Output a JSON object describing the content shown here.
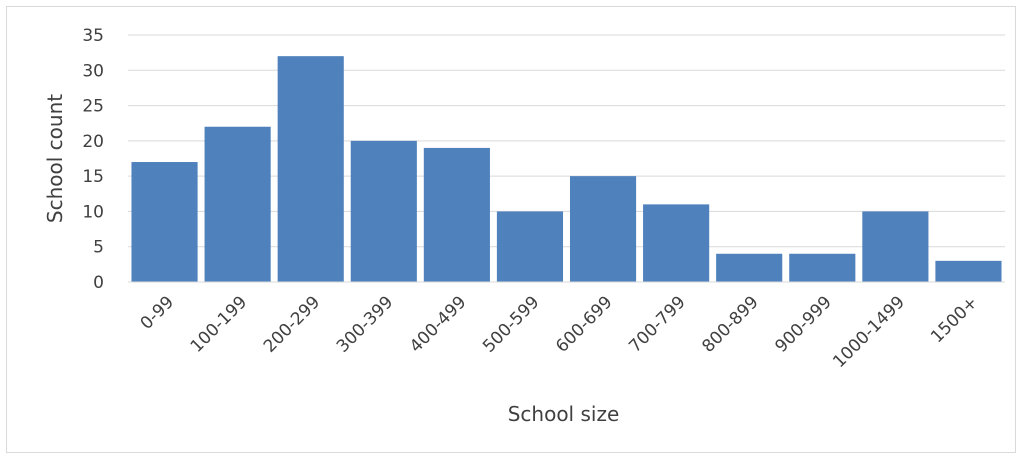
{
  "chart_data": {
    "type": "bar",
    "title": "",
    "xlabel": "School size",
    "ylabel": "School count",
    "ylim": [
      0,
      35
    ],
    "yticks": [
      0,
      5,
      10,
      15,
      20,
      25,
      30,
      35
    ],
    "grid": true,
    "legend": "none",
    "bar_color": "#4f81bd",
    "categories": [
      "0-99",
      "100-199",
      "200-299",
      "300-399",
      "400-499",
      "500-599",
      "600-699",
      "700-799",
      "800-899",
      "900-999",
      "1000-1499",
      "1500+"
    ],
    "values": [
      17,
      22,
      32,
      20,
      19,
      10,
      15,
      11,
      4,
      4,
      10,
      3
    ]
  }
}
